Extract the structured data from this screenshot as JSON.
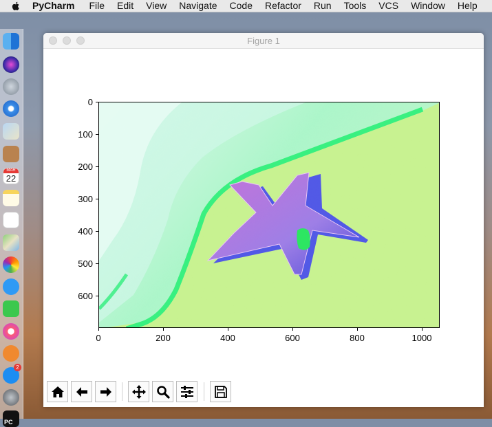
{
  "menubar": {
    "app_name": "PyCharm",
    "items": [
      "File",
      "Edit",
      "View",
      "Navigate",
      "Code",
      "Refactor",
      "Run",
      "Tools",
      "VCS",
      "Window",
      "Help"
    ]
  },
  "dock": {
    "icons": [
      "finder-icon",
      "siri-icon",
      "launchpad-icon",
      "safari-icon",
      "mail-icon",
      "contacts-icon",
      "calendar-icon",
      "notes-icon",
      "reminders-icon",
      "maps-icon",
      "photos-icon",
      "messages-icon",
      "facetime-icon",
      "itunes-icon",
      "ibooks-icon",
      "app-store-icon",
      "system-preferences-icon",
      "pycharm-icon"
    ],
    "calendar": {
      "month": "MAR",
      "day": "22"
    },
    "app_store_badge": "2",
    "pycharm_label": "PC"
  },
  "window": {
    "title": "Figure 1"
  },
  "figure": {
    "image_description_hidden": false,
    "x_ticks": [
      "0",
      "200",
      "400",
      "600",
      "800",
      "1000"
    ],
    "y_ticks": [
      "0",
      "100",
      "200",
      "300",
      "400",
      "500",
      "600"
    ],
    "x_range": [
      0,
      1055
    ],
    "y_range": [
      700,
      0
    ]
  },
  "toolbar": {
    "buttons": [
      {
        "name": "home-button",
        "icon": "home-icon"
      },
      {
        "name": "back-button",
        "icon": "arrow-left-icon"
      },
      {
        "name": "forward-button",
        "icon": "arrow-right-icon"
      },
      {
        "name": "pan-button",
        "icon": "move-icon"
      },
      {
        "name": "zoom-button",
        "icon": "magnifier-icon"
      },
      {
        "name": "configure-subplots-button",
        "icon": "sliders-icon"
      },
      {
        "name": "save-button",
        "icon": "floppy-disk-icon"
      }
    ]
  }
}
